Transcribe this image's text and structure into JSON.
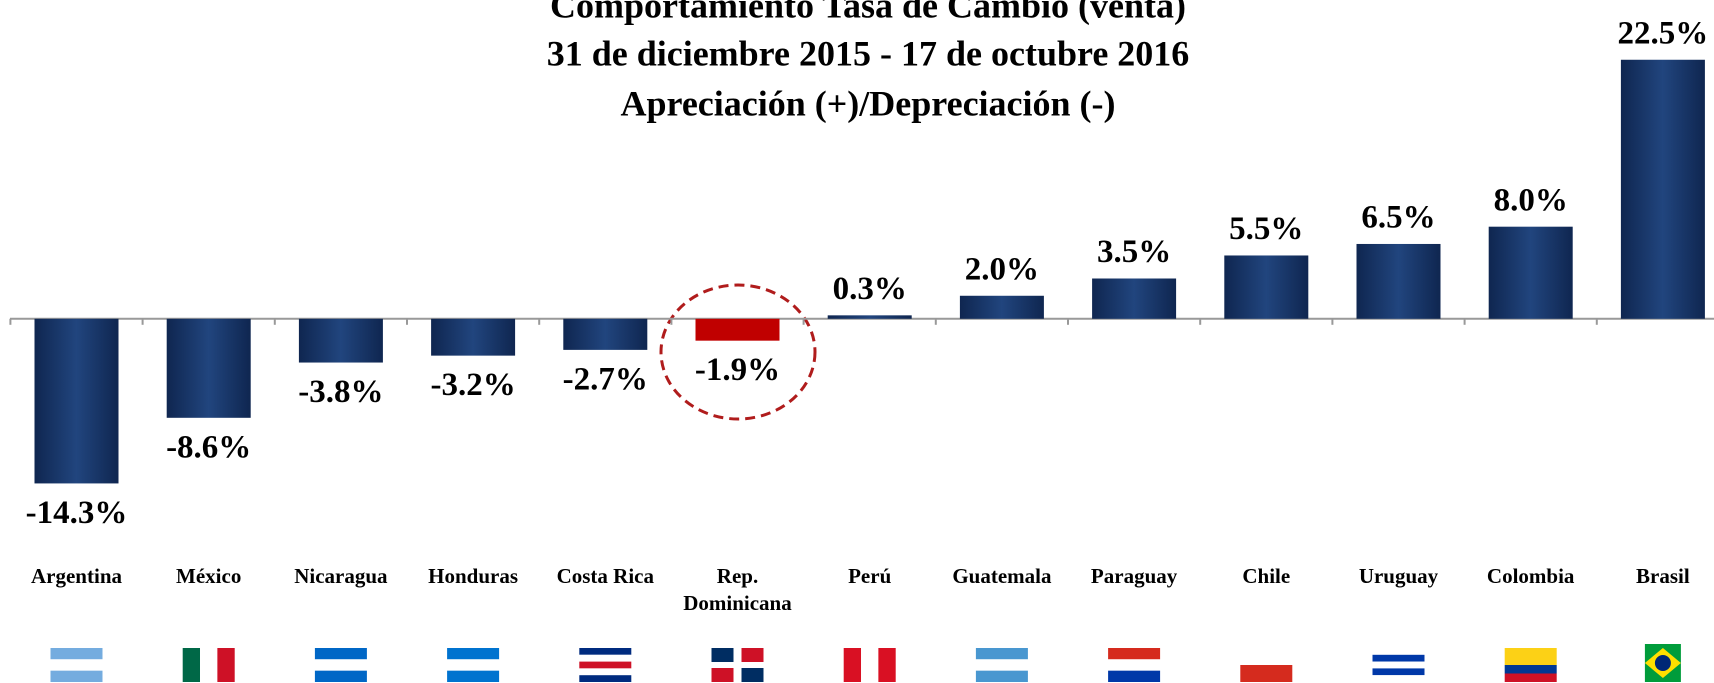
{
  "chart_data": {
    "type": "bar",
    "title": "Comportamiento Tasa de Cambio (venta)",
    "subtitle": [
      "31 de diciembre 2015 - 17 de octubre 2016",
      "Apreciación (+)/Depreciación (-)"
    ],
    "categories": [
      "Argentina",
      "México",
      "Nicaragua",
      "Honduras",
      "Costa Rica",
      "Rep. Dominicana",
      "Perú",
      "Guatemala",
      "Paraguay",
      "Chile",
      "Uruguay",
      "Colombia",
      "Brasil"
    ],
    "values": [
      -14.3,
      -8.6,
      -3.8,
      -3.2,
      -2.7,
      -1.9,
      0.3,
      2.0,
      3.5,
      5.5,
      6.5,
      8.0,
      22.5
    ],
    "value_labels": [
      "-14.3%",
      "-8.6%",
      "-3.8%",
      "-3.2%",
      "-2.7%",
      "-1.9%",
      "0.3%",
      "2.0%",
      "3.5%",
      "5.5%",
      "6.5%",
      "8.0%",
      "22.5%"
    ],
    "colors": [
      "#1b3a6e",
      "#1b3a6e",
      "#1b3a6e",
      "#1b3a6e",
      "#1b3a6e",
      "#c00000",
      "#1b3a6e",
      "#1b3a6e",
      "#1b3a6e",
      "#1b3a6e",
      "#1b3a6e",
      "#1b3a6e",
      "#1b3a6e"
    ],
    "ylim": [
      -16,
      23
    ]
  }
}
